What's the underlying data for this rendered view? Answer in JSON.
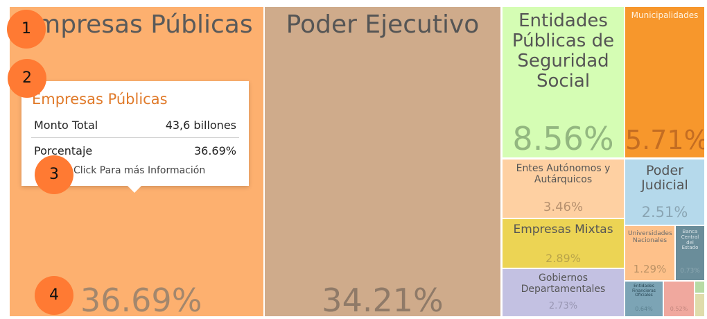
{
  "chart_data": {
    "type": "treemap",
    "tiles": [
      {
        "name": "Empresas Públicas",
        "pct_label": "36.69%",
        "value": 36.69,
        "color": "#fdb06f",
        "text_color": "#5a5a5a",
        "pct_color": "#a3876d"
      },
      {
        "name": "Poder Ejecutivo",
        "pct_label": "34.21%",
        "value": 34.21,
        "color": "#cfab8b",
        "text_color": "#555555",
        "pct_color": "#8f7a68"
      },
      {
        "name": "Entidades Públicas de Seguridad Social",
        "pct_label": "8.56%",
        "value": 8.56,
        "color": "#d5fdb4",
        "text_color": "#555555",
        "pct_color": "#93b780"
      },
      {
        "name": "Municipalidades",
        "pct_label": "5.71%",
        "value": 5.71,
        "color": "#f7972c",
        "text_color": "#fff2e0",
        "pct_color": "#c46d22"
      },
      {
        "name": "Entes Autónomos y Autárquicos",
        "pct_label": "3.46%",
        "value": 3.46,
        "color": "#fed0a2",
        "text_color": "#555555",
        "pct_color": "#b89270"
      },
      {
        "name": "Poder Judicial",
        "pct_label": "2.51%",
        "value": 2.51,
        "color": "#b5d9eb",
        "text_color": "#555555",
        "pct_color": "#8aa5b3"
      },
      {
        "name": "Empresas Mixtas",
        "pct_label": "2.89%",
        "value": 2.89,
        "color": "#ecd454",
        "text_color": "#555555",
        "pct_color": "#b9a44a"
      },
      {
        "name": "Gobiernos Departamentales",
        "pct_label": "2.73%",
        "value": 2.73,
        "color": "#c3c1e2",
        "text_color": "#555555",
        "pct_color": "#9896b2"
      },
      {
        "name": "Universidades Nacionales",
        "pct_label": "1.29%",
        "value": 1.29,
        "color": "#fec18a",
        "text_color": "#6a6a6a",
        "pct_color": "#bd9366"
      },
      {
        "name": "Banca Central del Estado",
        "pct_label": "0.73%",
        "value": 0.73,
        "color": "#6a8d9a",
        "text_color": "#d9e3e7",
        "pct_color": "#8ea9b3"
      },
      {
        "name": "Entidades Financieras Oficiales",
        "pct_label": "0.64%",
        "value": 0.64,
        "color": "#7ca4b5",
        "text_color": "#274552",
        "pct_color": "#5a7f8e"
      },
      {
        "name": "",
        "pct_label": "0.52%",
        "value": 0.52,
        "color": "#f0a89e",
        "text_color": "#555555",
        "pct_color": "#c0847c"
      },
      {
        "name": "",
        "pct_label": "",
        "value": null,
        "color": "#b7dba5",
        "text_color": "#555555",
        "pct_color": "#555555"
      },
      {
        "name": "",
        "pct_label": "",
        "value": null,
        "color": "#dfdcab",
        "text_color": "#555555",
        "pct_color": "#555555"
      }
    ]
  },
  "tooltip": {
    "title": "Empresas Públicas",
    "rows": [
      {
        "key": "Monto Total",
        "value": "43,6 billones"
      },
      {
        "key": "Porcentaje",
        "value": "36.69%"
      }
    ],
    "hint": "Click Para más Información"
  },
  "markers": [
    "1",
    "2",
    "3",
    "4"
  ]
}
